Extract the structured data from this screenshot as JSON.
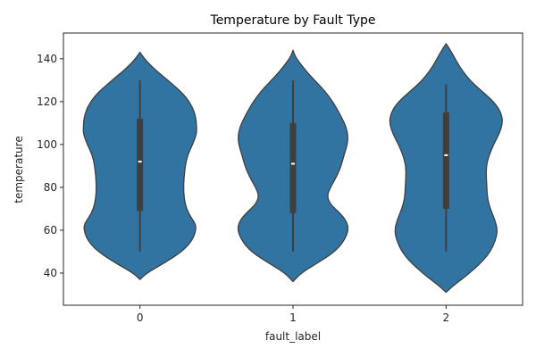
{
  "chart_data": {
    "type": "violin",
    "title": "Temperature by Fault Type",
    "xlabel": "fault_label",
    "ylabel": "temperature",
    "categories": [
      "0",
      "1",
      "2"
    ],
    "y_ticks": [
      40,
      60,
      80,
      100,
      120,
      140
    ],
    "ylim": [
      25,
      152
    ],
    "grid": false,
    "legend": "none",
    "violin_color": "#3274a1",
    "edge_color": "#3f3f3f",
    "violins": [
      {
        "category": "0",
        "min": 50,
        "q1": 69,
        "median": 92,
        "q3": 112,
        "max": 130,
        "kde_min": 37,
        "kde_max": 143,
        "profile": [
          [
            37,
            0.0
          ],
          [
            40,
            0.12
          ],
          [
            45,
            0.45
          ],
          [
            50,
            0.74
          ],
          [
            55,
            0.92
          ],
          [
            60,
            0.99
          ],
          [
            63,
            0.98
          ],
          [
            66,
            0.9
          ],
          [
            70,
            0.82
          ],
          [
            75,
            0.78
          ],
          [
            80,
            0.77
          ],
          [
            85,
            0.78
          ],
          [
            90,
            0.8
          ],
          [
            95,
            0.84
          ],
          [
            100,
            0.93
          ],
          [
            105,
            1.0
          ],
          [
            108,
            1.0
          ],
          [
            112,
            0.99
          ],
          [
            116,
            0.95
          ],
          [
            120,
            0.87
          ],
          [
            124,
            0.75
          ],
          [
            128,
            0.58
          ],
          [
            132,
            0.4
          ],
          [
            136,
            0.22
          ],
          [
            140,
            0.08
          ],
          [
            143,
            0.0
          ]
        ]
      },
      {
        "category": "1",
        "min": 50,
        "q1": 68,
        "median": 91,
        "q3": 110,
        "max": 130,
        "kde_min": 36,
        "kde_max": 144,
        "profile": [
          [
            36,
            0.0
          ],
          [
            40,
            0.14
          ],
          [
            45,
            0.45
          ],
          [
            50,
            0.74
          ],
          [
            55,
            0.9
          ],
          [
            60,
            0.98
          ],
          [
            64,
            0.95
          ],
          [
            68,
            0.83
          ],
          [
            72,
            0.66
          ],
          [
            76,
            0.6
          ],
          [
            80,
            0.66
          ],
          [
            85,
            0.77
          ],
          [
            90,
            0.85
          ],
          [
            95,
            0.9
          ],
          [
            100,
            0.96
          ],
          [
            104,
            0.97
          ],
          [
            108,
            0.94
          ],
          [
            112,
            0.87
          ],
          [
            116,
            0.79
          ],
          [
            120,
            0.7
          ],
          [
            125,
            0.56
          ],
          [
            130,
            0.38
          ],
          [
            134,
            0.24
          ],
          [
            138,
            0.12
          ],
          [
            141,
            0.04
          ],
          [
            144,
            0.0
          ]
        ]
      },
      {
        "category": "2",
        "min": 50,
        "q1": 70,
        "median": 95,
        "q3": 115,
        "max": 128,
        "kde_min": 31,
        "kde_max": 147,
        "profile": [
          [
            31,
            0.0
          ],
          [
            34,
            0.12
          ],
          [
            38,
            0.32
          ],
          [
            42,
            0.5
          ],
          [
            46,
            0.66
          ],
          [
            50,
            0.78
          ],
          [
            55,
            0.87
          ],
          [
            60,
            0.91
          ],
          [
            65,
            0.86
          ],
          [
            70,
            0.78
          ],
          [
            75,
            0.73
          ],
          [
            80,
            0.72
          ],
          [
            85,
            0.71
          ],
          [
            90,
            0.71
          ],
          [
            95,
            0.76
          ],
          [
            100,
            0.84
          ],
          [
            105,
            0.94
          ],
          [
            110,
            1.0
          ],
          [
            114,
            0.98
          ],
          [
            118,
            0.9
          ],
          [
            122,
            0.76
          ],
          [
            126,
            0.58
          ],
          [
            130,
            0.42
          ],
          [
            134,
            0.3
          ],
          [
            138,
            0.2
          ],
          [
            142,
            0.12
          ],
          [
            145,
            0.05
          ],
          [
            147,
            0.0
          ]
        ]
      }
    ]
  }
}
